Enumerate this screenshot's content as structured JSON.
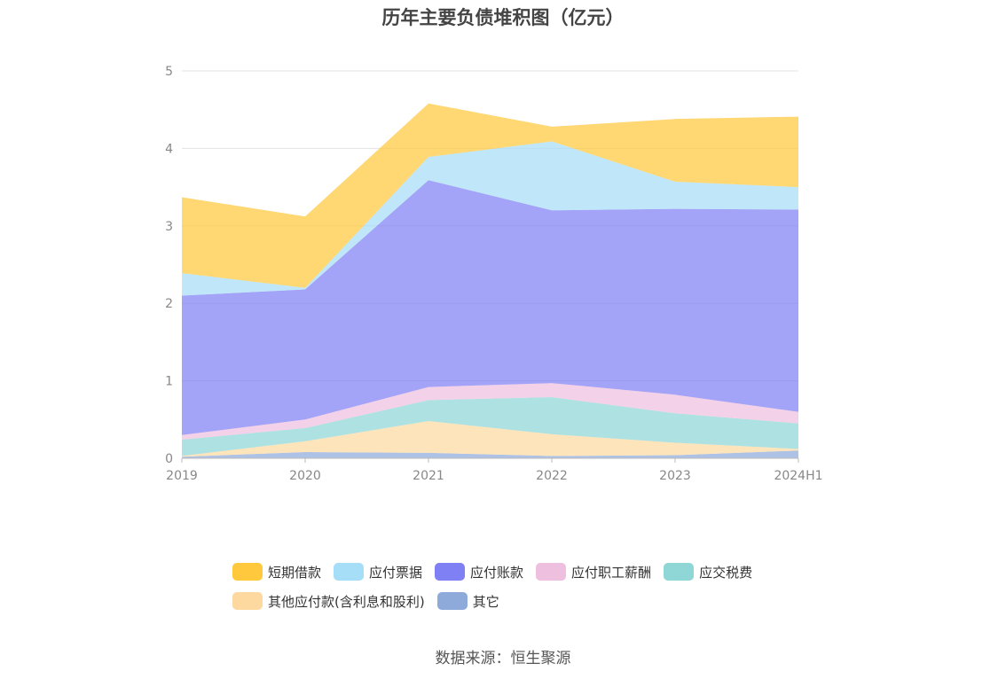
{
  "title": "历年主要负债堆积图（亿元）",
  "source": "数据来源：恒生聚源",
  "legend_rows": [
    [
      0,
      1,
      2,
      3,
      4
    ],
    [
      5,
      6
    ]
  ],
  "chart_data": {
    "type": "area",
    "stacked": true,
    "title": "历年主要负债堆积图（亿元）",
    "x": [
      "2019",
      "2020",
      "2021",
      "2022",
      "2023",
      "2024H1"
    ],
    "ylim": [
      0,
      5
    ],
    "yticks": [
      "0",
      "1",
      "2",
      "3",
      "4",
      "5"
    ],
    "grid": true,
    "legend_position": "bottom",
    "series": [
      {
        "name": "其它",
        "color": "#8eaadb",
        "values": [
          0.02,
          0.08,
          0.07,
          0.03,
          0.04,
          0.1
        ]
      },
      {
        "name": "其他应付款(含利息和股利)",
        "color": "#fdd9a0",
        "values": [
          0.01,
          0.14,
          0.41,
          0.28,
          0.16,
          0.02
        ]
      },
      {
        "name": "应交税费",
        "color": "#8fd6d6",
        "values": [
          0.21,
          0.17,
          0.27,
          0.48,
          0.38,
          0.33
        ]
      },
      {
        "name": "应付职工薪酬",
        "color": "#efbfdf",
        "values": [
          0.06,
          0.11,
          0.17,
          0.18,
          0.24,
          0.15
        ]
      },
      {
        "name": "应付账款",
        "color": "#7f80f4",
        "values": [
          1.8,
          1.68,
          2.67,
          2.23,
          2.4,
          2.61
        ]
      },
      {
        "name": "应付票据",
        "color": "#a6ddf7",
        "values": [
          0.29,
          0.02,
          0.3,
          0.89,
          0.35,
          0.29
        ]
      },
      {
        "name": "短期借款",
        "color": "#ffc83d",
        "values": [
          0.98,
          0.92,
          0.69,
          0.19,
          0.81,
          0.91
        ]
      }
    ],
    "legend_order": [
      "短期借款",
      "应付票据",
      "应付账款",
      "应付职工薪酬",
      "应交税费",
      "其他应付款(含利息和股利)",
      "其它"
    ]
  }
}
